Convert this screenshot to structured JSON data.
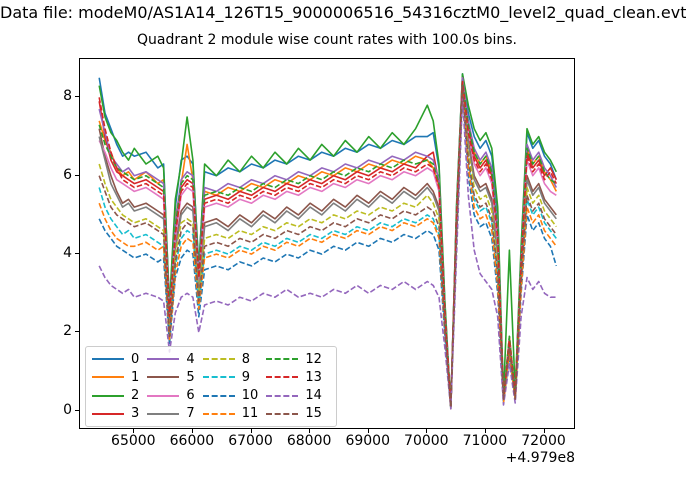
{
  "figure": {
    "suptitle": "Data file: modeM0/AS1A14_126T15_9000006516_54316cztM0_level2_quad_clean.evt",
    "axes_title": "Quadrant 2 module wise count rates with 100.0s bins.",
    "x_offset_label": "+4.979e8"
  },
  "chart_data": {
    "type": "line",
    "title": "Quadrant 2 module wise count rates with 100.0s bins.",
    "xlabel": "",
    "ylabel": "",
    "grid": false,
    "legend_position": "lower left",
    "legend_columns": 4,
    "x_offset_label": "+4.979e8",
    "x_offset_value": 497900000,
    "xlim": [
      64073,
      72537
    ],
    "ylim": [
      -0.49,
      8.98
    ],
    "xticks": [
      65000,
      66000,
      67000,
      68000,
      69000,
      70000,
      71000,
      72000
    ],
    "yticks": [
      0,
      2,
      4,
      6,
      8
    ],
    "x": [
      64400,
      64500,
      64600,
      64700,
      64800,
      64900,
      65000,
      65200,
      65400,
      65500,
      65600,
      65700,
      65800,
      65900,
      66000,
      66100,
      66200,
      66400,
      66600,
      66800,
      67000,
      67200,
      67400,
      67600,
      67800,
      68000,
      68200,
      68400,
      68600,
      68800,
      69000,
      69200,
      69400,
      69600,
      69800,
      70000,
      70100,
      70200,
      70300,
      70400,
      70500,
      70600,
      70700,
      70800,
      70900,
      71000,
      71100,
      71200,
      71300,
      71400,
      71500,
      71600,
      71700,
      71800,
      71900,
      72000,
      72100,
      72200
    ],
    "series": [
      {
        "name": "0",
        "color": "#1f77b4",
        "linestyle": "solid",
        "values": [
          8.5,
          7.6,
          7.2,
          6.8,
          6.5,
          6.6,
          6.5,
          6.6,
          6.2,
          6.3,
          2.6,
          5.2,
          6.4,
          6.5,
          6.3,
          3.7,
          6.1,
          6.0,
          6.2,
          6.1,
          6.3,
          6.2,
          6.4,
          6.3,
          6.5,
          6.4,
          6.6,
          6.5,
          6.7,
          6.6,
          6.8,
          6.7,
          6.9,
          6.8,
          7.0,
          7.0,
          7.1,
          6.2,
          2.7,
          0.1,
          5.2,
          8.6,
          7.6,
          7.0,
          6.7,
          6.9,
          6.5,
          5.0,
          0.3,
          1.9,
          0.4,
          4.0,
          7.1,
          6.7,
          6.9,
          6.5,
          6.3,
          5.9
        ]
      },
      {
        "name": "1",
        "color": "#ff7f0e",
        "linestyle": "solid",
        "values": [
          7.4,
          6.9,
          6.6,
          6.2,
          6.0,
          6.1,
          5.9,
          6.1,
          5.8,
          5.9,
          2.4,
          4.9,
          5.8,
          6.8,
          5.9,
          3.5,
          5.6,
          5.5,
          5.7,
          5.6,
          5.8,
          5.7,
          5.9,
          5.8,
          6.0,
          5.9,
          6.1,
          6.0,
          6.2,
          6.1,
          6.3,
          6.2,
          6.4,
          6.3,
          6.5,
          6.4,
          6.2,
          5.7,
          2.5,
          0.1,
          5.1,
          8.5,
          7.3,
          6.6,
          6.3,
          6.5,
          6.1,
          4.6,
          0.3,
          1.9,
          0.4,
          3.8,
          6.7,
          6.3,
          6.5,
          6.1,
          5.9,
          5.6
        ]
      },
      {
        "name": "2",
        "color": "#2ca02c",
        "linestyle": "solid",
        "values": [
          8.3,
          7.5,
          7.1,
          6.9,
          6.6,
          6.4,
          6.7,
          6.3,
          6.5,
          6.2,
          2.7,
          5.4,
          6.3,
          7.5,
          6.4,
          3.6,
          6.3,
          6.0,
          6.4,
          6.1,
          6.5,
          6.2,
          6.6,
          6.3,
          6.7,
          6.4,
          6.8,
          6.5,
          6.9,
          6.6,
          7.0,
          6.7,
          7.1,
          6.8,
          7.2,
          7.8,
          7.4,
          6.3,
          2.8,
          0.1,
          5.3,
          8.6,
          7.8,
          7.2,
          6.9,
          7.1,
          6.7,
          5.2,
          0.4,
          4.1,
          0.5,
          4.2,
          7.2,
          6.8,
          7.0,
          6.6,
          6.4,
          6.1
        ]
      },
      {
        "name": "3",
        "color": "#d62728",
        "linestyle": "solid",
        "values": [
          7.9,
          7.0,
          6.4,
          6.1,
          6.0,
          5.9,
          5.8,
          5.9,
          5.7,
          5.6,
          2.4,
          4.6,
          5.7,
          5.9,
          5.8,
          3.4,
          5.4,
          5.5,
          5.4,
          5.6,
          5.5,
          5.7,
          5.6,
          5.8,
          5.7,
          5.9,
          5.8,
          6.0,
          5.9,
          6.1,
          6.0,
          6.2,
          6.1,
          6.3,
          6.2,
          6.5,
          6.6,
          5.8,
          2.5,
          0.1,
          5.0,
          8.5,
          7.2,
          6.5,
          6.2,
          6.4,
          6.0,
          4.5,
          0.3,
          1.8,
          0.4,
          3.8,
          6.6,
          6.2,
          6.4,
          6.0,
          6.2,
          5.9
        ]
      },
      {
        "name": "4",
        "color": "#9467bd",
        "linestyle": "solid",
        "values": [
          7.7,
          7.1,
          6.5,
          6.3,
          6.1,
          6.2,
          6.0,
          6.1,
          5.9,
          5.8,
          2.5,
          4.8,
          5.9,
          6.1,
          6.0,
          3.5,
          5.7,
          5.6,
          5.8,
          5.7,
          5.9,
          5.8,
          6.0,
          5.9,
          6.1,
          6.0,
          6.2,
          6.1,
          6.3,
          6.2,
          6.4,
          6.3,
          6.5,
          6.4,
          6.6,
          6.5,
          6.4,
          5.9,
          2.6,
          0.1,
          5.1,
          8.5,
          7.4,
          6.7,
          6.4,
          6.6,
          6.2,
          4.7,
          0.3,
          1.8,
          0.4,
          3.9,
          6.8,
          6.4,
          6.6,
          6.2,
          6.0,
          5.7
        ]
      },
      {
        "name": "5",
        "color": "#8c564b",
        "linestyle": "solid",
        "values": [
          7.2,
          6.5,
          6.0,
          5.6,
          5.3,
          5.4,
          5.2,
          5.3,
          5.1,
          5.0,
          2.1,
          4.2,
          5.1,
          5.3,
          5.2,
          3.1,
          4.8,
          4.9,
          4.7,
          5.0,
          4.8,
          5.1,
          4.9,
          5.2,
          5.0,
          5.3,
          5.1,
          5.4,
          5.2,
          5.5,
          5.3,
          5.6,
          5.4,
          5.7,
          5.5,
          5.8,
          5.6,
          5.2,
          2.3,
          0.1,
          4.8,
          8.4,
          6.9,
          6.0,
          5.7,
          5.8,
          5.4,
          4.0,
          0.3,
          1.7,
          0.4,
          3.5,
          6.0,
          5.6,
          5.8,
          5.4,
          5.2,
          5.0
        ]
      },
      {
        "name": "6",
        "color": "#e377c2",
        "linestyle": "solid",
        "values": [
          6.9,
          6.6,
          6.2,
          5.9,
          5.8,
          5.7,
          5.6,
          5.7,
          5.5,
          5.4,
          2.3,
          4.4,
          5.5,
          5.7,
          5.6,
          3.3,
          5.2,
          5.3,
          5.2,
          5.4,
          5.3,
          5.5,
          5.4,
          5.6,
          5.5,
          5.7,
          5.6,
          5.8,
          5.7,
          5.9,
          5.8,
          6.0,
          5.9,
          6.1,
          6.0,
          6.2,
          6.1,
          5.6,
          2.4,
          0.1,
          4.9,
          8.4,
          7.1,
          6.3,
          6.0,
          6.2,
          5.8,
          4.3,
          0.3,
          1.8,
          0.4,
          3.7,
          6.4,
          6.0,
          6.2,
          5.8,
          5.6,
          5.5
        ]
      },
      {
        "name": "7",
        "color": "#7f7f7f",
        "linestyle": "solid",
        "values": [
          7.0,
          6.4,
          5.8,
          5.5,
          5.2,
          5.3,
          5.1,
          5.2,
          5.0,
          4.9,
          2.1,
          4.1,
          5.0,
          5.2,
          5.1,
          3.0,
          4.7,
          4.8,
          4.6,
          4.9,
          4.7,
          5.0,
          4.8,
          5.1,
          4.9,
          5.2,
          5.0,
          5.3,
          5.1,
          5.4,
          5.2,
          5.5,
          5.3,
          5.6,
          5.4,
          5.7,
          5.5,
          5.1,
          2.2,
          0.1,
          4.7,
          8.4,
          6.8,
          5.9,
          5.6,
          5.7,
          5.3,
          3.9,
          0.3,
          1.7,
          0.3,
          3.4,
          5.9,
          5.5,
          5.7,
          5.3,
          5.1,
          4.9
        ]
      },
      {
        "name": "8",
        "color": "#bcbd22",
        "linestyle": "dashed",
        "values": [
          6.3,
          5.8,
          5.4,
          5.2,
          5.0,
          4.9,
          4.8,
          4.9,
          4.7,
          4.6,
          2.0,
          4.0,
          4.8,
          4.9,
          4.8,
          2.9,
          4.4,
          4.5,
          4.4,
          4.6,
          4.5,
          4.7,
          4.6,
          4.8,
          4.7,
          4.9,
          4.8,
          5.0,
          4.9,
          5.1,
          5.0,
          5.2,
          5.1,
          5.3,
          5.2,
          5.5,
          5.3,
          4.9,
          2.2,
          0.1,
          4.7,
          8.3,
          6.6,
          5.7,
          5.4,
          5.5,
          5.1,
          3.7,
          0.3,
          1.6,
          0.4,
          3.4,
          5.7,
          5.3,
          5.5,
          5.1,
          4.9,
          4.7
        ]
      },
      {
        "name": "9",
        "color": "#17becf",
        "linestyle": "dashed",
        "values": [
          5.7,
          5.2,
          4.9,
          4.7,
          4.5,
          4.6,
          4.4,
          4.5,
          4.3,
          4.2,
          1.8,
          3.7,
          4.4,
          4.6,
          4.5,
          2.7,
          4.0,
          4.1,
          4.0,
          4.2,
          4.1,
          4.3,
          4.2,
          4.4,
          4.3,
          4.5,
          4.4,
          4.6,
          4.5,
          4.7,
          4.6,
          4.8,
          4.7,
          4.9,
          4.8,
          5.0,
          4.9,
          4.5,
          2.1,
          0.1,
          4.6,
          8.3,
          6.3,
          5.4,
          5.1,
          5.2,
          4.8,
          3.4,
          0.3,
          1.5,
          0.3,
          3.2,
          5.4,
          5.0,
          5.2,
          4.8,
          4.6,
          4.4
        ]
      },
      {
        "name": "10",
        "color": "#1f77b4",
        "linestyle": "dashed",
        "values": [
          4.9,
          4.6,
          4.4,
          4.2,
          4.1,
          4.0,
          3.9,
          4.0,
          3.8,
          3.9,
          1.7,
          3.4,
          3.9,
          4.1,
          4.0,
          2.4,
          3.6,
          3.7,
          3.6,
          3.8,
          3.7,
          3.9,
          3.8,
          4.0,
          3.9,
          4.1,
          4.0,
          4.2,
          4.1,
          4.3,
          4.2,
          4.4,
          4.3,
          4.5,
          4.4,
          4.6,
          4.5,
          4.1,
          1.9,
          0.05,
          4.4,
          8.2,
          6.0,
          5.0,
          4.7,
          4.8,
          4.4,
          3.0,
          0.2,
          1.4,
          0.3,
          3.0,
          5.0,
          4.6,
          4.8,
          4.4,
          4.2,
          3.7
        ]
      },
      {
        "name": "11",
        "color": "#ff7f0e",
        "linestyle": "dashed",
        "values": [
          5.3,
          4.9,
          4.6,
          4.4,
          4.3,
          4.2,
          4.2,
          4.3,
          4.1,
          4.2,
          1.8,
          3.5,
          4.2,
          4.4,
          4.3,
          2.6,
          3.9,
          4.0,
          3.9,
          4.1,
          4.0,
          4.2,
          4.1,
          4.3,
          4.2,
          4.4,
          4.3,
          4.5,
          4.4,
          4.6,
          4.5,
          4.7,
          4.6,
          4.8,
          4.7,
          4.9,
          4.8,
          4.4,
          2.0,
          0.05,
          4.5,
          8.2,
          6.2,
          5.2,
          4.9,
          5.0,
          4.6,
          3.2,
          0.2,
          1.5,
          0.3,
          3.1,
          5.2,
          4.8,
          5.0,
          4.6,
          4.4,
          4.2
        ]
      },
      {
        "name": "12",
        "color": "#2ca02c",
        "linestyle": "dashed",
        "values": [
          7.3,
          6.8,
          6.5,
          6.2,
          6.1,
          6.0,
          5.9,
          6.0,
          5.8,
          5.7,
          2.5,
          4.7,
          5.8,
          6.0,
          5.9,
          3.5,
          5.5,
          5.6,
          5.5,
          5.7,
          5.6,
          5.8,
          5.7,
          5.9,
          5.8,
          6.0,
          5.9,
          6.1,
          6.0,
          6.2,
          6.1,
          6.3,
          6.2,
          6.4,
          6.3,
          6.4,
          6.3,
          5.8,
          2.6,
          0.1,
          5.1,
          8.4,
          7.3,
          6.6,
          6.3,
          6.5,
          6.1,
          4.6,
          0.3,
          1.9,
          0.4,
          3.9,
          6.7,
          6.3,
          6.5,
          6.1,
          5.9,
          5.8
        ]
      },
      {
        "name": "13",
        "color": "#d62728",
        "linestyle": "dashed",
        "values": [
          8.0,
          7.2,
          6.6,
          6.2,
          5.9,
          5.8,
          5.7,
          5.8,
          5.6,
          5.5,
          2.4,
          4.5,
          5.6,
          5.8,
          5.7,
          3.4,
          5.3,
          5.4,
          5.3,
          5.5,
          5.4,
          5.6,
          5.5,
          5.7,
          5.6,
          5.8,
          5.7,
          5.9,
          5.8,
          6.0,
          5.9,
          6.1,
          6.0,
          6.2,
          6.1,
          6.3,
          6.2,
          5.7,
          2.5,
          0.1,
          5.0,
          8.4,
          7.1,
          6.4,
          6.1,
          6.3,
          5.9,
          4.4,
          0.3,
          1.8,
          0.4,
          3.7,
          6.5,
          6.1,
          6.3,
          5.9,
          6.1,
          5.8
        ]
      },
      {
        "name": "14",
        "color": "#9467bd",
        "linestyle": "dashed",
        "values": [
          3.7,
          3.4,
          3.2,
          3.1,
          3.0,
          3.1,
          2.9,
          3.0,
          2.9,
          2.8,
          1.5,
          2.5,
          2.9,
          3.0,
          2.9,
          2.0,
          2.7,
          2.8,
          2.7,
          2.9,
          2.8,
          3.0,
          2.9,
          3.1,
          2.9,
          3.0,
          2.9,
          3.1,
          3.0,
          3.2,
          3.0,
          3.2,
          3.1,
          3.3,
          3.1,
          3.3,
          3.2,
          2.9,
          1.6,
          0.05,
          4.0,
          8.0,
          5.5,
          4.1,
          3.5,
          3.3,
          3.1,
          2.4,
          0.15,
          1.2,
          0.2,
          2.4,
          3.4,
          3.1,
          3.3,
          3.0,
          2.9,
          2.9
        ]
      },
      {
        "name": "15",
        "color": "#8c564b",
        "linestyle": "dashed",
        "values": [
          6.0,
          5.6,
          5.2,
          5.0,
          4.9,
          4.8,
          4.7,
          4.8,
          4.6,
          4.5,
          1.9,
          3.8,
          4.6,
          4.8,
          4.7,
          2.8,
          4.2,
          4.3,
          4.2,
          4.4,
          4.3,
          4.5,
          4.4,
          4.6,
          4.5,
          4.7,
          4.6,
          4.8,
          4.7,
          4.9,
          4.8,
          5.0,
          4.9,
          5.1,
          5.0,
          5.2,
          5.1,
          4.7,
          2.1,
          0.1,
          4.6,
          8.3,
          6.4,
          5.5,
          5.2,
          5.3,
          4.9,
          3.5,
          0.3,
          1.6,
          0.3,
          3.3,
          5.5,
          5.1,
          5.3,
          4.9,
          4.7,
          4.5
        ]
      }
    ]
  }
}
